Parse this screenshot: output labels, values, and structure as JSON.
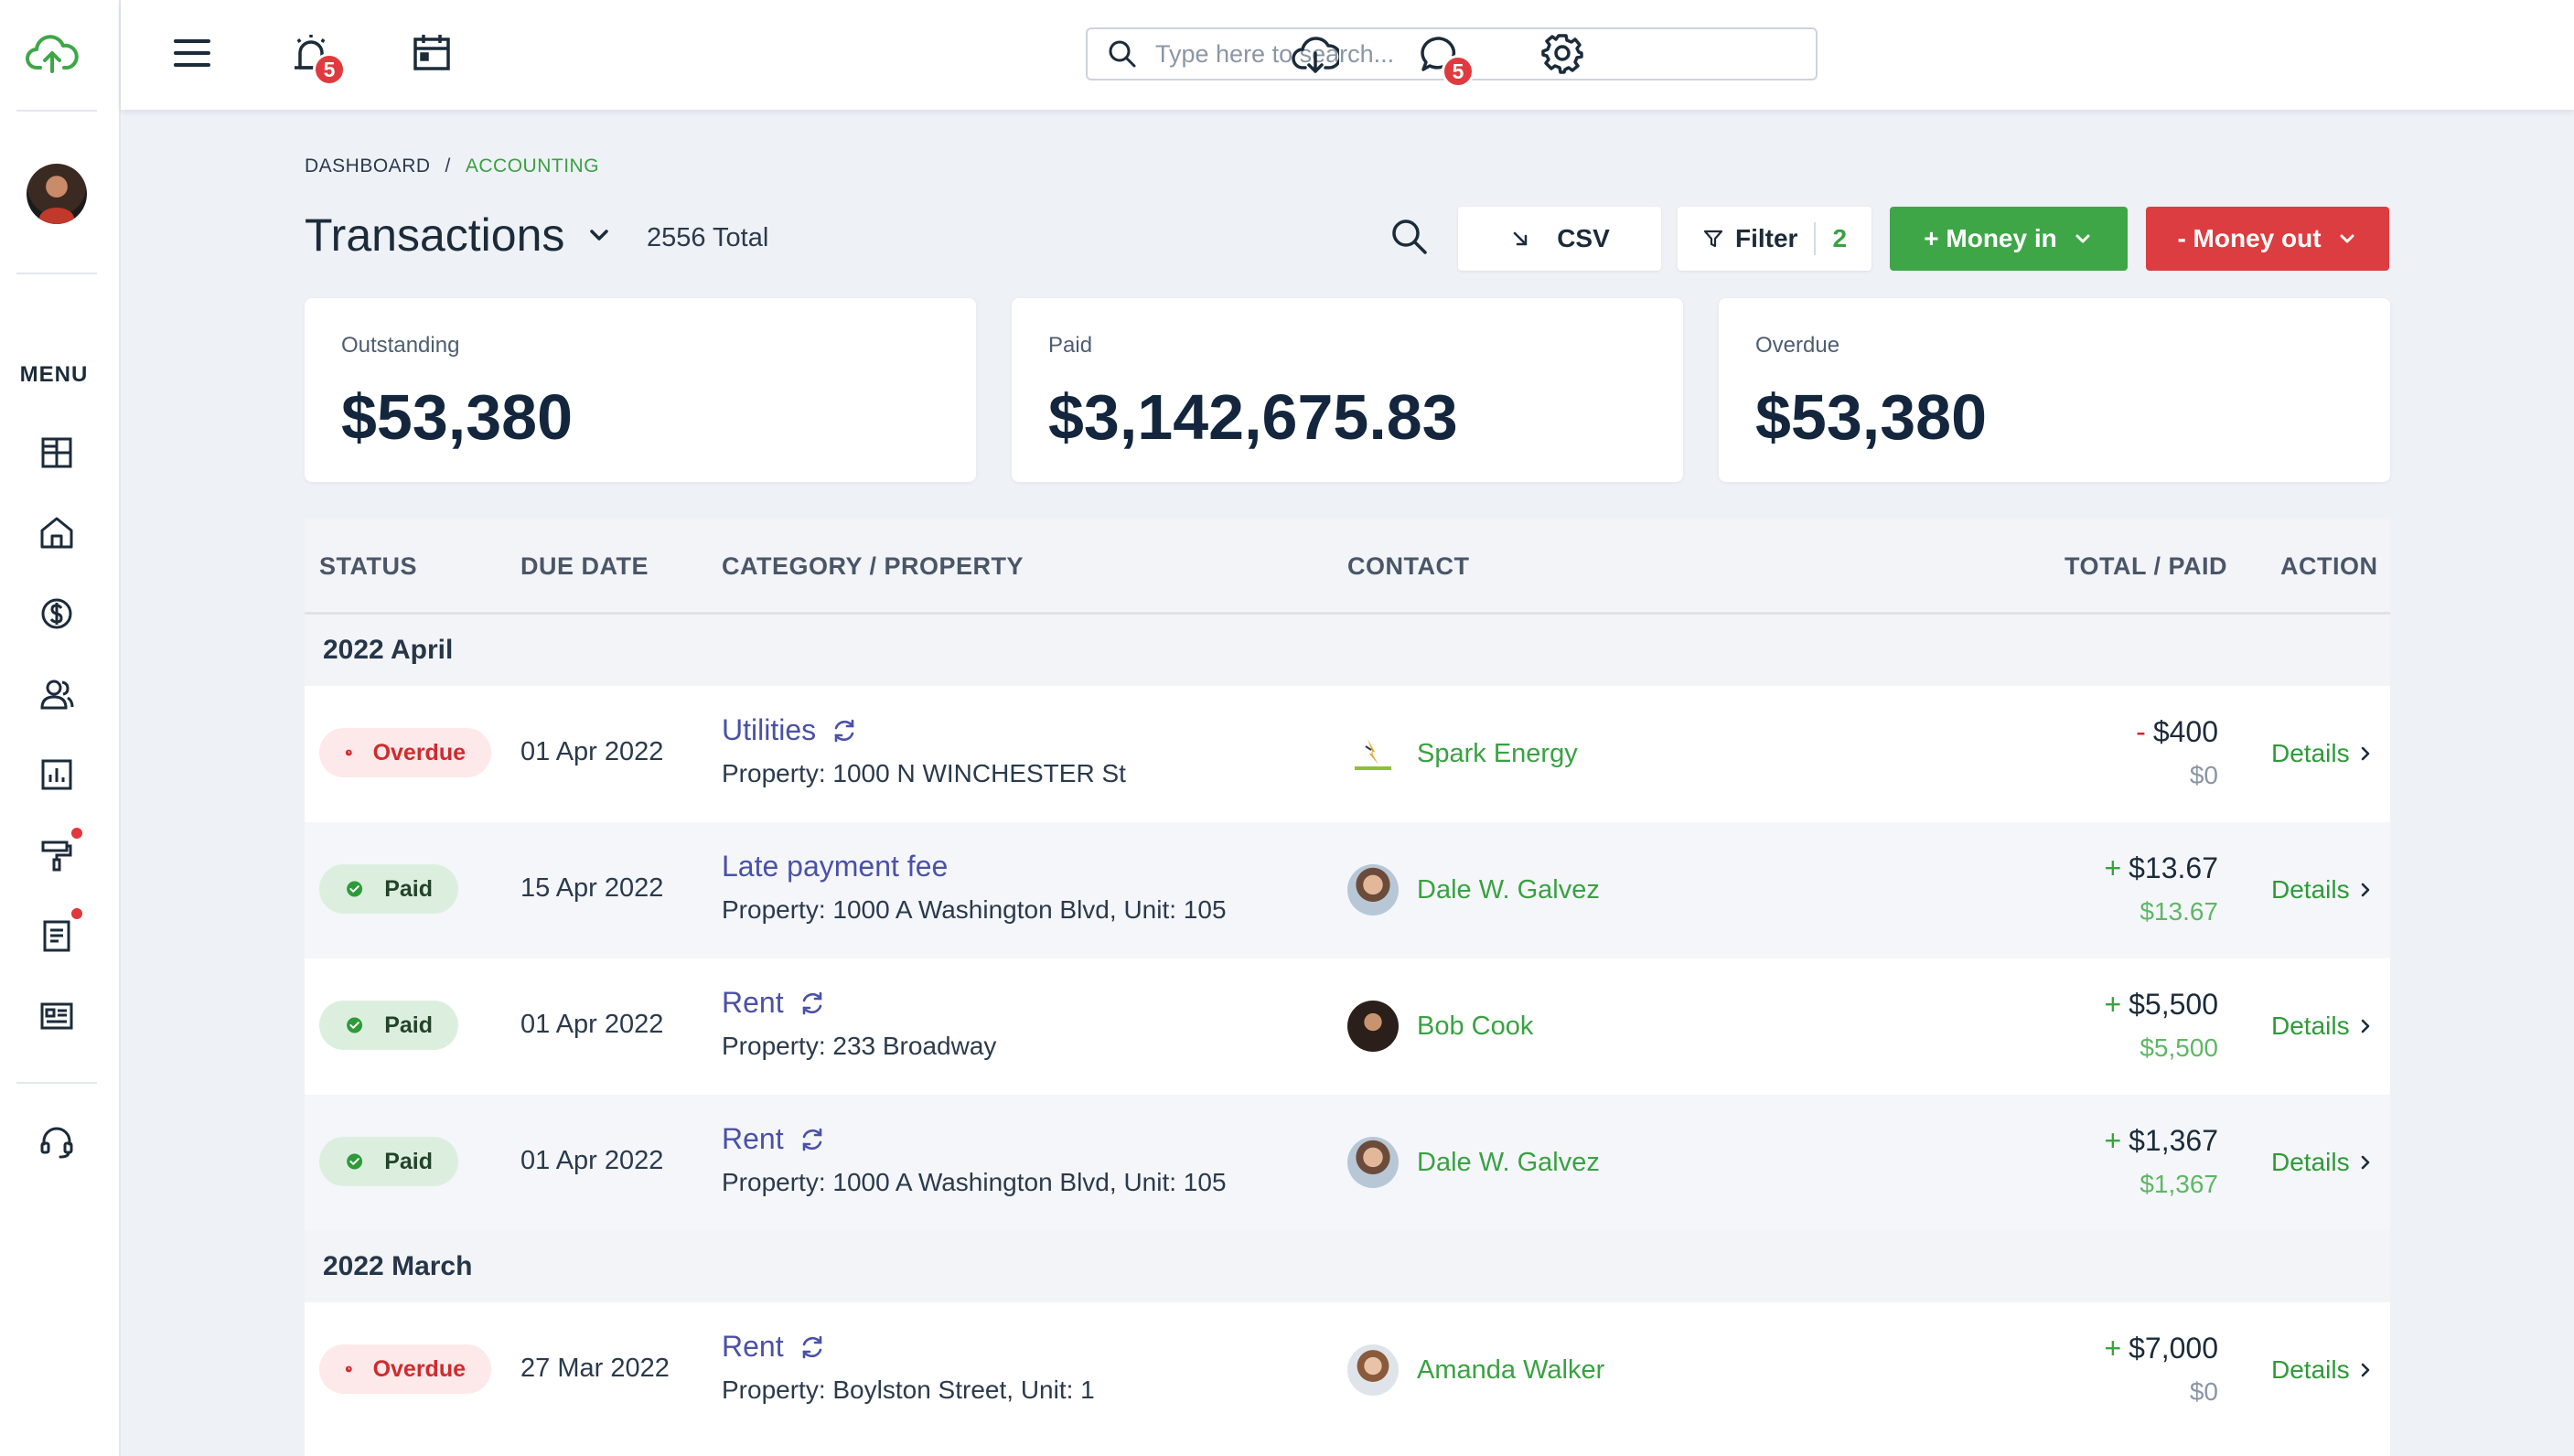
{
  "topbar": {
    "search_placeholder": "Type here to search...",
    "alerts_count": "5",
    "messages_count": "5"
  },
  "sidebar": {
    "menu_label": "MENU"
  },
  "breadcrumb": {
    "items": [
      "DASHBOARD",
      "ACCOUNTING"
    ],
    "separator": "/"
  },
  "page": {
    "title": "Transactions",
    "total": "2556 Total"
  },
  "actions": {
    "csv": "CSV",
    "filter": "Filter",
    "filter_count": "2",
    "money_in": "+ Money in",
    "money_out": "- Money out"
  },
  "summary": [
    {
      "label": "Outstanding",
      "value": "$53,380"
    },
    {
      "label": "Paid",
      "value": "$3,142,675.83"
    },
    {
      "label": "Overdue",
      "value": "$53,380"
    }
  ],
  "table": {
    "headers": [
      "STATUS",
      "DUE DATE",
      "CATEGORY / PROPERTY",
      "CONTACT",
      "TOTAL / PAID",
      "ACTION"
    ],
    "groups": [
      {
        "label": "2022 April",
        "rows": [
          {
            "status": "Overdue",
            "due": "01 Apr 2022",
            "category": "Utilities",
            "recurring": true,
            "property": "Property: 1000 N WINCHESTER St",
            "contact": "Spark Energy",
            "sign": "-",
            "total": "$400",
            "paid": "$0",
            "action": "Details"
          },
          {
            "status": "Paid",
            "due": "15 Apr 2022",
            "category": "Late payment fee",
            "recurring": false,
            "property": "Property: 1000 A Washington Blvd, Unit: 105",
            "contact": "Dale W. Galvez",
            "sign": "+",
            "total": "$13.67",
            "paid": "$13.67",
            "action": "Details"
          },
          {
            "status": "Paid",
            "due": "01 Apr 2022",
            "category": "Rent",
            "recurring": true,
            "property": "Property: 233 Broadway",
            "contact": "Bob Cook",
            "sign": "+",
            "total": "$5,500",
            "paid": "$5,500",
            "action": "Details"
          },
          {
            "status": "Paid",
            "due": "01 Apr 2022",
            "category": "Rent",
            "recurring": true,
            "property": "Property: 1000 A Washington Blvd, Unit: 105",
            "contact": "Dale W. Galvez",
            "sign": "+",
            "total": "$1,367",
            "paid": "$1,367",
            "action": "Details"
          }
        ]
      },
      {
        "label": "2022 March",
        "rows": [
          {
            "status": "Overdue",
            "due": "27 Mar 2022",
            "category": "Rent",
            "recurring": true,
            "property": "Property: Boylston Street, Unit: 1",
            "contact": "Amanda Walker",
            "sign": "+",
            "total": "$7,000",
            "paid": "$0",
            "action": "Details"
          }
        ]
      }
    ]
  },
  "colors": {
    "accent_green": "#3fa648",
    "accent_red": "#db3d40",
    "link_purple": "#4a51a8",
    "background": "#eef1f6"
  }
}
